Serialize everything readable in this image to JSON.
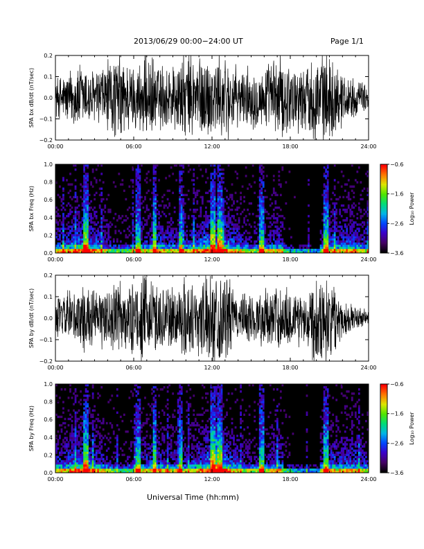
{
  "header": {
    "title": "2013/06/29  00:00−24:00 UT",
    "page": "Page 1/1"
  },
  "footer": {
    "xlabel": "Universal Time (hh:mm)"
  },
  "colorbar": {
    "label": "Log₁₀ Power",
    "ticks": [
      "−0.6",
      "−1.6",
      "−2.6",
      "−3.6"
    ],
    "tick_values": [
      -0.6,
      -1.6,
      -2.6,
      -3.6
    ],
    "range": [
      -3.6,
      -0.6
    ]
  },
  "chart_data": [
    {
      "type": "line",
      "panel": "bx-waveform",
      "ylabel": "SPA bx dB/dt (nT/sec)",
      "xlim": [
        0,
        24
      ],
      "ylim": [
        -0.2,
        0.2
      ],
      "xticks": [
        "00:00",
        "06:00",
        "12:00",
        "18:00",
        "24:00"
      ],
      "yticks": [
        "−0.2",
        "−0.1",
        "0.0",
        "0.1",
        "0.2"
      ],
      "ytick_values": [
        -0.2,
        -0.1,
        0.0,
        0.1,
        0.2
      ],
      "x": [
        0,
        1,
        2,
        3,
        4,
        5,
        6,
        7,
        8,
        9,
        10,
        11,
        12,
        13,
        14,
        15,
        16,
        17,
        18,
        19,
        20,
        21,
        22,
        23,
        24
      ],
      "amplitude": [
        0.09,
        0.12,
        0.16,
        0.12,
        0.17,
        0.2,
        0.14,
        0.2,
        0.15,
        0.16,
        0.2,
        0.2,
        0.19,
        0.2,
        0.12,
        0.14,
        0.13,
        0.2,
        0.16,
        0.14,
        0.2,
        0.2,
        0.12,
        0.08,
        0.06
      ],
      "grid": false
    },
    {
      "type": "heatmap",
      "panel": "bx-spectrogram",
      "ylabel": "SPA bx Freq (Hz)",
      "xlim": [
        0,
        24
      ],
      "ylim": [
        0,
        1.0
      ],
      "xticks": [
        "00:00",
        "06:00",
        "12:00",
        "18:00",
        "24:00"
      ],
      "yticks": [
        "0.0",
        "0.2",
        "0.4",
        "0.6",
        "0.8",
        "1.0"
      ],
      "ytick_values": [
        0.0,
        0.2,
        0.4,
        0.6,
        0.8,
        1.0
      ],
      "zlim": [
        -3.6,
        -0.6
      ],
      "zlabel": "Log₁₀ Power",
      "bright_bands_hours": [
        2.3,
        6.3,
        7.6,
        9.6,
        12.1,
        12.6,
        15.8,
        20.7
      ],
      "grid": false
    },
    {
      "type": "line",
      "panel": "by-waveform",
      "ylabel": "SPA by dB/dt (nT/sec)",
      "xlim": [
        0,
        24
      ],
      "ylim": [
        -0.2,
        0.2
      ],
      "xticks": [
        "00:00",
        "06:00",
        "12:00",
        "18:00",
        "24:00"
      ],
      "yticks": [
        "−0.2",
        "−0.1",
        "0.0",
        "0.1",
        "0.2"
      ],
      "ytick_values": [
        -0.2,
        -0.1,
        0.0,
        0.1,
        0.2
      ],
      "x": [
        0,
        1,
        2,
        3,
        4,
        5,
        6,
        7,
        8,
        9,
        10,
        11,
        12,
        13,
        14,
        15,
        16,
        17,
        18,
        19,
        20,
        21,
        22,
        23,
        24
      ],
      "amplitude": [
        0.08,
        0.12,
        0.15,
        0.12,
        0.14,
        0.17,
        0.15,
        0.2,
        0.14,
        0.15,
        0.18,
        0.17,
        0.2,
        0.2,
        0.1,
        0.12,
        0.12,
        0.15,
        0.13,
        0.12,
        0.2,
        0.18,
        0.09,
        0.05,
        0.04
      ],
      "grid": false
    },
    {
      "type": "heatmap",
      "panel": "by-spectrogram",
      "ylabel": "SPA by Freq (Hz)",
      "xlim": [
        0,
        24
      ],
      "ylim": [
        0,
        1.0
      ],
      "xticks": [
        "00:00",
        "06:00",
        "12:00",
        "18:00",
        "24:00"
      ],
      "yticks": [
        "0.0",
        "0.2",
        "0.4",
        "0.6",
        "0.8",
        "1.0"
      ],
      "ytick_values": [
        0.0,
        0.2,
        0.4,
        0.6,
        0.8,
        1.0
      ],
      "zlim": [
        -3.6,
        -0.6
      ],
      "zlabel": "Log₁₀ Power",
      "bright_bands_hours": [
        2.3,
        6.3,
        7.6,
        9.6,
        12.1,
        12.6,
        15.8,
        20.7
      ],
      "grid": false
    }
  ]
}
